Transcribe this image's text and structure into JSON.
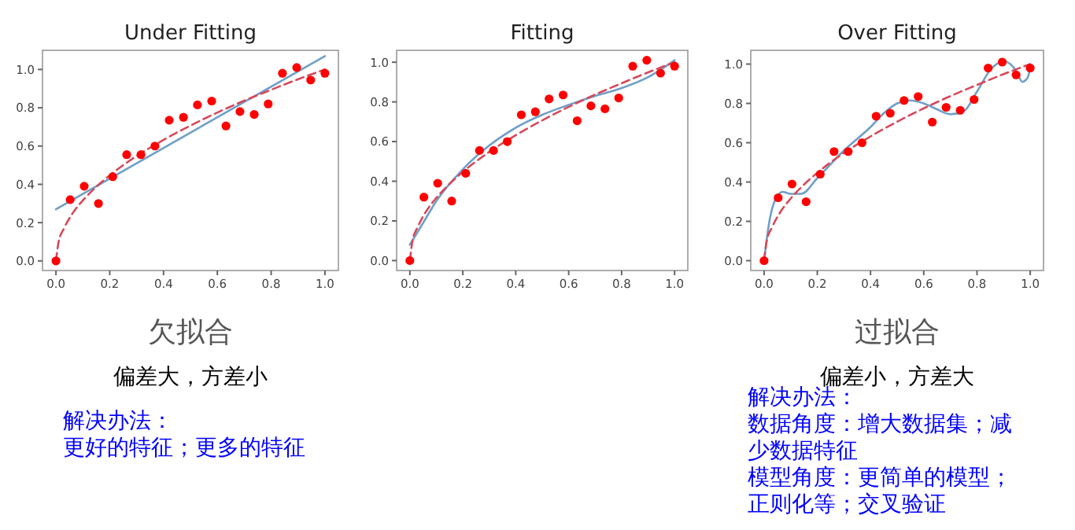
{
  "chart_data": [
    {
      "type": "scatter",
      "title": "Under Fitting",
      "xlim": [
        -0.05,
        1.05
      ],
      "ylim": [
        -0.05,
        1.1
      ],
      "xticks": [
        {
          "value": 0,
          "label": "0.0"
        },
        {
          "value": 0.2,
          "label": "0.2"
        },
        {
          "value": 0.4,
          "label": "0.4"
        },
        {
          "value": 0.6,
          "label": "0.6"
        },
        {
          "value": 0.8,
          "label": "0.8"
        },
        {
          "value": 1,
          "label": "1.0"
        }
      ],
      "yticks": [
        {
          "value": 0,
          "label": "0.0"
        },
        {
          "value": 0.2,
          "label": "0.2"
        },
        {
          "value": 0.4,
          "label": "0.4"
        },
        {
          "value": 0.6,
          "label": "0.6"
        },
        {
          "value": 0.8,
          "label": "0.8"
        },
        {
          "value": 1,
          "label": "1.0"
        }
      ],
      "grid": false,
      "series": [
        {
          "type": "line",
          "color": "#6f9fc8",
          "line_style": "solid",
          "marker": "none",
          "x": [
            0,
            1
          ],
          "values": [
            0.27,
            1.07
          ]
        },
        {
          "type": "line",
          "color": "#d6495a",
          "line_style": "dashed",
          "marker": "none",
          "x": [
            0,
            0.01,
            0.03,
            0.06,
            0.1,
            0.15,
            0.2,
            0.3,
            0.4,
            0.5,
            0.6,
            0.7,
            0.8,
            0.9,
            1
          ],
          "values": [
            0,
            0.1,
            0.17,
            0.245,
            0.316,
            0.387,
            0.447,
            0.548,
            0.632,
            0.707,
            0.775,
            0.837,
            0.894,
            0.949,
            1
          ]
        },
        {
          "type": "scatter",
          "color": "#ff0000",
          "marker": "circle",
          "x": [
            0,
            0.053,
            0.105,
            0.158,
            0.211,
            0.263,
            0.316,
            0.368,
            0.421,
            0.474,
            0.526,
            0.579,
            0.632,
            0.684,
            0.737,
            0.789,
            0.842,
            0.895,
            0.947,
            1
          ],
          "values": [
            0,
            0.32,
            0.39,
            0.3,
            0.44,
            0.555,
            0.555,
            0.6,
            0.735,
            0.75,
            0.815,
            0.835,
            0.705,
            0.78,
            0.765,
            0.82,
            0.98,
            1.01,
            0.945,
            0.98
          ]
        }
      ],
      "annotations": [
        "欠拟合",
        "偏差大，方差小",
        "解决办法：",
        "更好的特征；更多的特征"
      ]
    },
    {
      "type": "scatter",
      "title": "Fitting",
      "xlim": [
        -0.05,
        1.05
      ],
      "ylim": [
        -0.05,
        1.06
      ],
      "xticks": [
        {
          "value": 0,
          "label": "0.0"
        },
        {
          "value": 0.2,
          "label": "0.2"
        },
        {
          "value": 0.4,
          "label": "0.4"
        },
        {
          "value": 0.6,
          "label": "0.6"
        },
        {
          "value": 0.8,
          "label": "0.8"
        },
        {
          "value": 1,
          "label": "1.0"
        }
      ],
      "yticks": [
        {
          "value": 0,
          "label": "0.0"
        },
        {
          "value": 0.2,
          "label": "0.2"
        },
        {
          "value": 0.4,
          "label": "0.4"
        },
        {
          "value": 0.6,
          "label": "0.6"
        },
        {
          "value": 0.8,
          "label": "0.8"
        },
        {
          "value": 1,
          "label": "1.0"
        }
      ],
      "grid": false,
      "series": [
        {
          "type": "line",
          "color": "#6f9fc8",
          "line_style": "solid",
          "marker": "none",
          "x": [
            0,
            0.05,
            0.1,
            0.2,
            0.3,
            0.4,
            0.5,
            0.6,
            0.7,
            0.8,
            0.9,
            1
          ],
          "values": [
            0.08,
            0.19,
            0.3,
            0.46,
            0.58,
            0.67,
            0.735,
            0.785,
            0.83,
            0.87,
            0.925,
            1.01
          ]
        },
        {
          "type": "line",
          "color": "#d6495a",
          "line_style": "dashed",
          "marker": "none",
          "x": [
            0,
            0.01,
            0.03,
            0.06,
            0.1,
            0.15,
            0.2,
            0.3,
            0.4,
            0.5,
            0.6,
            0.7,
            0.8,
            0.9,
            1
          ],
          "values": [
            0,
            0.1,
            0.17,
            0.245,
            0.316,
            0.387,
            0.447,
            0.548,
            0.632,
            0.707,
            0.775,
            0.837,
            0.894,
            0.949,
            1
          ]
        },
        {
          "type": "scatter",
          "color": "#ff0000",
          "marker": "circle",
          "x": [
            0,
            0.053,
            0.105,
            0.158,
            0.211,
            0.263,
            0.316,
            0.368,
            0.421,
            0.474,
            0.526,
            0.579,
            0.632,
            0.684,
            0.737,
            0.789,
            0.842,
            0.895,
            0.947,
            1
          ],
          "values": [
            0,
            0.32,
            0.39,
            0.3,
            0.44,
            0.555,
            0.555,
            0.6,
            0.735,
            0.75,
            0.815,
            0.835,
            0.705,
            0.78,
            0.765,
            0.82,
            0.98,
            1.01,
            0.945,
            0.98
          ]
        }
      ]
    },
    {
      "type": "scatter",
      "title": "Over Fitting",
      "xlim": [
        -0.05,
        1.05
      ],
      "ylim": [
        -0.05,
        1.07
      ],
      "xticks": [
        {
          "value": 0,
          "label": "0.0"
        },
        {
          "value": 0.2,
          "label": "0.2"
        },
        {
          "value": 0.4,
          "label": "0.4"
        },
        {
          "value": 0.6,
          "label": "0.6"
        },
        {
          "value": 0.8,
          "label": "0.8"
        },
        {
          "value": 1,
          "label": "1.0"
        }
      ],
      "yticks": [
        {
          "value": 0,
          "label": "0.0"
        },
        {
          "value": 0.2,
          "label": "0.2"
        },
        {
          "value": 0.4,
          "label": "0.4"
        },
        {
          "value": 0.6,
          "label": "0.6"
        },
        {
          "value": 0.8,
          "label": "0.8"
        },
        {
          "value": 1,
          "label": "1.0"
        }
      ],
      "grid": false,
      "series": [
        {
          "type": "line",
          "color": "#6f9fc8",
          "line_style": "solid",
          "marker": "none",
          "x": [
            0,
            0.02,
            0.05,
            0.07,
            0.1,
            0.14,
            0.2,
            0.3,
            0.4,
            0.45,
            0.5,
            0.55,
            0.6,
            0.65,
            0.7,
            0.75,
            0.8,
            0.85,
            0.9,
            0.95,
            0.97,
            0.99,
            1
          ],
          "values": [
            0,
            0.2,
            0.33,
            0.35,
            0.34,
            0.34,
            0.42,
            0.56,
            0.68,
            0.75,
            0.8,
            0.815,
            0.8,
            0.77,
            0.745,
            0.76,
            0.86,
            0.97,
            1.015,
            0.96,
            0.91,
            0.93,
            0.98
          ]
        },
        {
          "type": "line",
          "color": "#d6495a",
          "line_style": "dashed",
          "marker": "none",
          "x": [
            0,
            0.01,
            0.03,
            0.06,
            0.1,
            0.15,
            0.2,
            0.3,
            0.4,
            0.5,
            0.6,
            0.7,
            0.8,
            0.9,
            1
          ],
          "values": [
            0,
            0.1,
            0.17,
            0.245,
            0.316,
            0.387,
            0.447,
            0.548,
            0.632,
            0.707,
            0.775,
            0.837,
            0.894,
            0.949,
            1
          ]
        },
        {
          "type": "scatter",
          "color": "#ff0000",
          "marker": "circle",
          "x": [
            0,
            0.053,
            0.105,
            0.158,
            0.211,
            0.263,
            0.316,
            0.368,
            0.421,
            0.474,
            0.526,
            0.579,
            0.632,
            0.684,
            0.737,
            0.789,
            0.842,
            0.895,
            0.947,
            1
          ],
          "values": [
            0,
            0.32,
            0.39,
            0.3,
            0.44,
            0.555,
            0.555,
            0.6,
            0.735,
            0.75,
            0.815,
            0.835,
            0.705,
            0.78,
            0.765,
            0.82,
            0.98,
            1.01,
            0.945,
            0.98
          ]
        }
      ],
      "annotations": [
        "过拟合",
        "偏差小，方差大",
        "解决办法：",
        "数据角度：增大数据集；减少数据特征",
        "模型角度：更简单的模型；正则化等；交叉验证"
      ]
    }
  ]
}
